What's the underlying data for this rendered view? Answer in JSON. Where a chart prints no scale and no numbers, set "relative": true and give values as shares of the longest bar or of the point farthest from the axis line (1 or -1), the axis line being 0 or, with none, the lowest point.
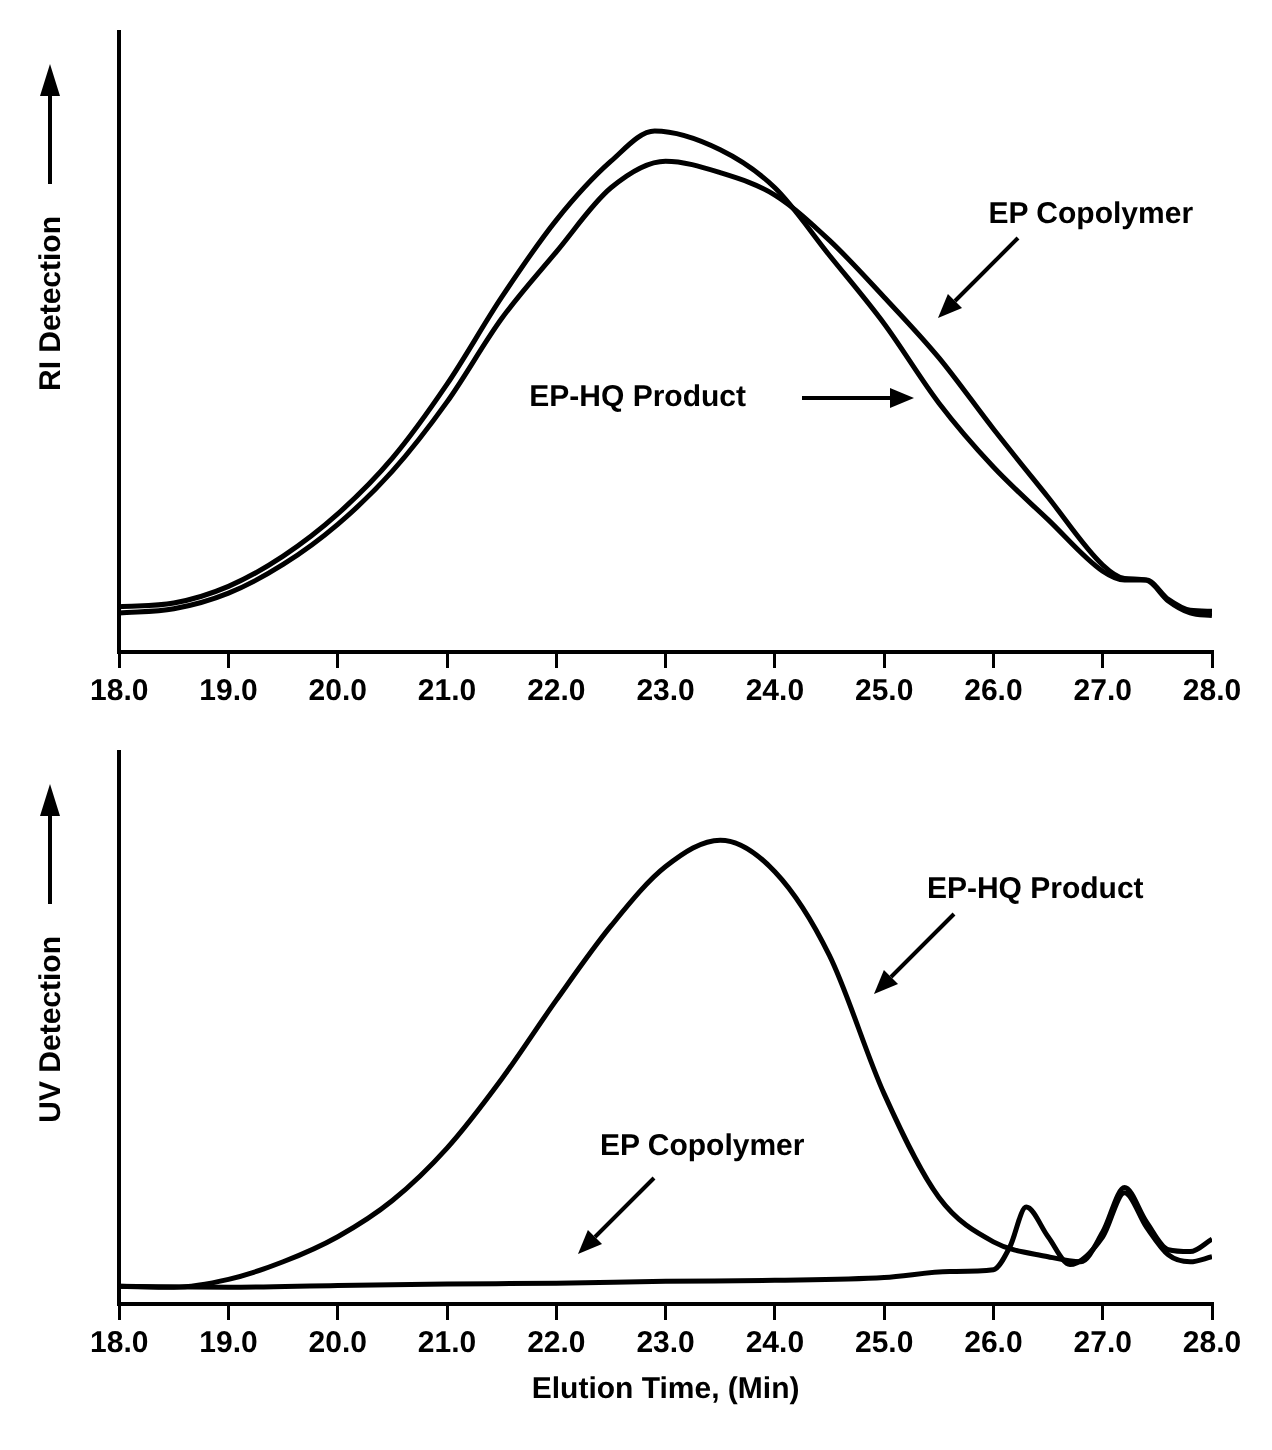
{
  "chart_data": [
    {
      "type": "line",
      "ylabel": "RI Detection",
      "relative": true,
      "legend": false,
      "grid": false,
      "marker": "none",
      "line_style": "solid",
      "xlim": [
        18,
        28
      ],
      "xticks": [
        {
          "value": 18,
          "label": "18.0"
        },
        {
          "value": 19,
          "label": "19.0"
        },
        {
          "value": 20,
          "label": "20.0"
        },
        {
          "value": 21,
          "label": "21.0"
        },
        {
          "value": 22,
          "label": "22.0"
        },
        {
          "value": 23,
          "label": "23.0"
        },
        {
          "value": 24,
          "label": "24.0"
        },
        {
          "value": 25,
          "label": "25.0"
        },
        {
          "value": 26,
          "label": "26.0"
        },
        {
          "value": 27,
          "label": "27.0"
        },
        {
          "value": 28,
          "label": "28.0"
        }
      ],
      "annotations": [
        "EP Copolymer",
        "EP-HQ Product"
      ],
      "series": [
        {
          "color": "#000000",
          "x": [
            18.0,
            18.5,
            19.0,
            19.5,
            20.0,
            20.5,
            21.0,
            21.5,
            22.0,
            22.5,
            22.9,
            23.5,
            24.0,
            24.5,
            25.0,
            25.5,
            26.0,
            26.5,
            27.0,
            27.2,
            27.4,
            27.6,
            27.8,
            28.0
          ],
          "values": [
            0.087,
            0.094,
            0.126,
            0.184,
            0.265,
            0.372,
            0.514,
            0.681,
            0.829,
            0.942,
            1.0,
            0.964,
            0.891,
            0.761,
            0.63,
            0.478,
            0.355,
            0.254,
            0.155,
            0.138,
            0.138,
            0.101,
            0.08,
            0.078
          ]
        },
        {
          "color": "#000000",
          "x": [
            18.0,
            18.5,
            19.0,
            19.5,
            20.0,
            20.5,
            21.0,
            21.5,
            22.0,
            22.5,
            23.0,
            23.5,
            24.0,
            24.5,
            25.0,
            25.5,
            26.0,
            26.5,
            27.0,
            27.2,
            27.4,
            27.6,
            27.8,
            28.0
          ],
          "values": [
            0.075,
            0.083,
            0.113,
            0.168,
            0.245,
            0.347,
            0.48,
            0.64,
            0.768,
            0.891,
            0.942,
            0.92,
            0.877,
            0.79,
            0.681,
            0.565,
            0.428,
            0.297,
            0.167,
            0.141,
            0.138,
            0.098,
            0.075,
            0.07
          ]
        }
      ]
    },
    {
      "type": "line",
      "ylabel": "UV Detection",
      "xlabel": "Elution Time, (Min)",
      "relative": true,
      "legend": false,
      "grid": false,
      "marker": "none",
      "line_style": "solid",
      "xlim": [
        18,
        28
      ],
      "xticks": [
        {
          "value": 18,
          "label": "18.0"
        },
        {
          "value": 19,
          "label": "19.0"
        },
        {
          "value": 20,
          "label": "20.0"
        },
        {
          "value": 21,
          "label": "21.0"
        },
        {
          "value": 22,
          "label": "22.0"
        },
        {
          "value": 23,
          "label": "23.0"
        },
        {
          "value": 24,
          "label": "24.0"
        },
        {
          "value": 25,
          "label": "25.0"
        },
        {
          "value": 26,
          "label": "26.0"
        },
        {
          "value": 27,
          "label": "27.0"
        },
        {
          "value": 28,
          "label": "28.0"
        }
      ],
      "annotations": [
        "EP-HQ Product",
        "EP Copolymer"
      ],
      "series": [
        {
          "color": "#000000",
          "x": [
            18.0,
            18.5,
            19.0,
            19.5,
            20.0,
            20.5,
            21.0,
            21.5,
            22.0,
            22.5,
            23.0,
            23.5,
            24.0,
            24.5,
            25.0,
            25.5,
            26.0,
            26.5,
            26.8,
            27.0,
            27.2,
            27.4,
            27.6,
            27.8,
            28.0
          ],
          "values": [
            0.038,
            0.036,
            0.053,
            0.091,
            0.145,
            0.223,
            0.336,
            0.485,
            0.655,
            0.815,
            0.943,
            1.0,
            0.932,
            0.751,
            0.453,
            0.23,
            0.134,
            0.102,
            0.091,
            0.155,
            0.251,
            0.177,
            0.117,
            0.113,
            0.14
          ]
        },
        {
          "color": "#000000",
          "x": [
            18.0,
            19.0,
            20.0,
            21.0,
            22.0,
            23.0,
            24.0,
            25.0,
            25.6,
            26.0,
            26.15,
            26.3,
            26.5,
            26.7,
            27.0,
            27.2,
            27.4,
            27.6,
            27.8,
            28.0
          ],
          "values": [
            0.038,
            0.036,
            0.04,
            0.043,
            0.045,
            0.049,
            0.051,
            0.057,
            0.07,
            0.074,
            0.123,
            0.209,
            0.145,
            0.085,
            0.145,
            0.24,
            0.166,
            0.106,
            0.091,
            0.102
          ]
        }
      ]
    }
  ]
}
